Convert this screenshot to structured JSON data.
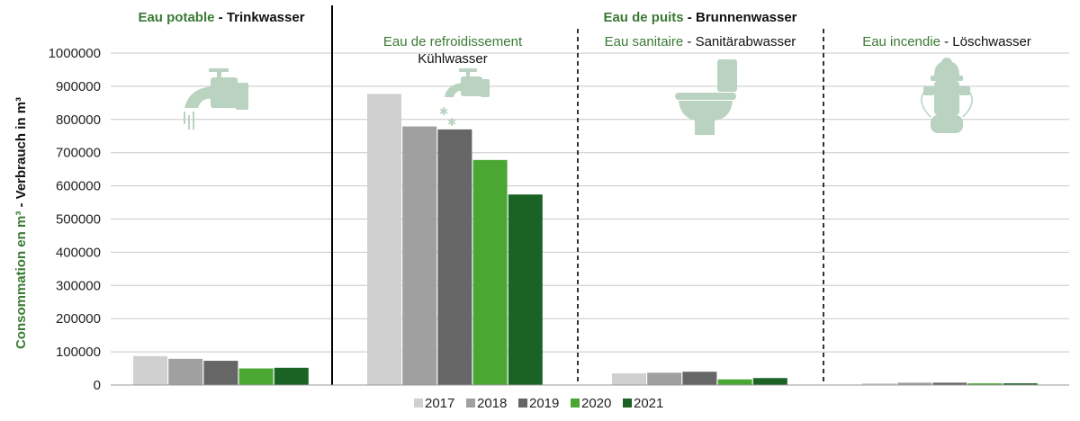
{
  "chart_data": {
    "type": "bar",
    "ylabel_green": "Consommation en m³",
    "ylabel_sep": " - ",
    "ylabel_black": "Verbrauch in m³",
    "ylim": [
      0,
      1000000
    ],
    "yticks": [
      "0",
      "100000",
      "200000",
      "300000",
      "400000",
      "500000",
      "600000",
      "700000",
      "800000",
      "900000",
      "1000000"
    ],
    "grid": true,
    "legend_position": "bottom",
    "colors": [
      "#d0d0d0",
      "#a0a0a0",
      "#666666",
      "#4aa832",
      "#1b6324"
    ],
    "series": [
      {
        "name": "2017",
        "values": [
          87000,
          877000,
          35000,
          5000
        ]
      },
      {
        "name": "2018",
        "values": [
          79000,
          779000,
          37000,
          7000
        ]
      },
      {
        "name": "2019",
        "values": [
          73000,
          770000,
          40000,
          7000
        ]
      },
      {
        "name": "2020",
        "values": [
          50000,
          678000,
          17000,
          5000
        ]
      },
      {
        "name": "2021",
        "values": [
          52000,
          574000,
          21000,
          5000
        ]
      }
    ]
  },
  "headers": {
    "potable_fr": "Eau potable",
    "potable_sep": " - ",
    "potable_de": "Trinkwasser",
    "puits_fr": "Eau de puits",
    "puits_sep": " - ",
    "puits_de": "Brunnenwasser"
  },
  "categories": {
    "cooling_fr": "Eau de refroidissement",
    "cooling_de": "Kühlwasser",
    "sanitary_fr": "Eau sanitaire",
    "sanitary_sep": " - ",
    "sanitary_de": "Sanitärabwasser",
    "fire_fr": "Eau incendie",
    "fire_sep": " - ",
    "fire_de": "Löschwasser"
  },
  "icons": [
    "faucet-icon",
    "cooling-faucet-icon",
    "toilet-icon",
    "fire-hydrant-icon"
  ],
  "icon_color": "#b9d3c0"
}
